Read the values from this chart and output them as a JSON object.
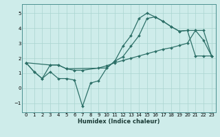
{
  "xlabel": "Humidex (Indice chaleur)",
  "bg_color": "#ceecea",
  "grid_color": "#aad4d0",
  "line_color": "#2d7068",
  "xlim": [
    -0.5,
    23.5
  ],
  "ylim": [
    -1.6,
    5.6
  ],
  "yticks": [
    -1,
    0,
    1,
    2,
    3,
    4,
    5
  ],
  "xticks": [
    0,
    1,
    2,
    3,
    4,
    5,
    6,
    7,
    8,
    9,
    10,
    11,
    12,
    13,
    14,
    15,
    16,
    17,
    18,
    19,
    20,
    21,
    22,
    23
  ],
  "series1_x": [
    0,
    1,
    2,
    3,
    4,
    5,
    6,
    7,
    8,
    9,
    10,
    11,
    12,
    13,
    14,
    15,
    16,
    17,
    18,
    19,
    20,
    21,
    22,
    23
  ],
  "series1_y": [
    1.7,
    1.1,
    0.65,
    1.1,
    0.65,
    0.65,
    0.55,
    -1.2,
    0.35,
    0.5,
    1.35,
    1.8,
    2.8,
    3.5,
    4.65,
    5.0,
    4.75,
    4.45,
    4.1,
    3.8,
    3.85,
    2.15,
    2.15,
    2.15
  ],
  "series2_x": [
    0,
    1,
    2,
    3,
    4,
    5,
    6,
    7,
    9,
    10,
    11,
    12,
    13,
    14,
    15,
    16,
    17,
    18,
    19,
    20,
    21,
    22,
    23
  ],
  "series2_y": [
    1.7,
    1.1,
    0.65,
    1.55,
    1.55,
    1.3,
    1.2,
    1.2,
    1.35,
    1.5,
    1.7,
    1.85,
    2.0,
    2.15,
    2.3,
    2.45,
    2.6,
    2.7,
    2.85,
    3.0,
    3.85,
    3.85,
    2.15
  ],
  "series3_x": [
    0,
    3,
    4,
    5,
    10,
    11,
    12,
    13,
    14,
    15,
    16,
    17,
    18,
    19,
    20,
    21,
    22,
    23
  ],
  "series3_y": [
    1.7,
    1.55,
    1.55,
    1.3,
    1.35,
    1.8,
    2.1,
    2.8,
    3.5,
    4.65,
    4.75,
    4.45,
    4.1,
    3.8,
    3.85,
    3.85,
    3.2,
    2.15
  ]
}
